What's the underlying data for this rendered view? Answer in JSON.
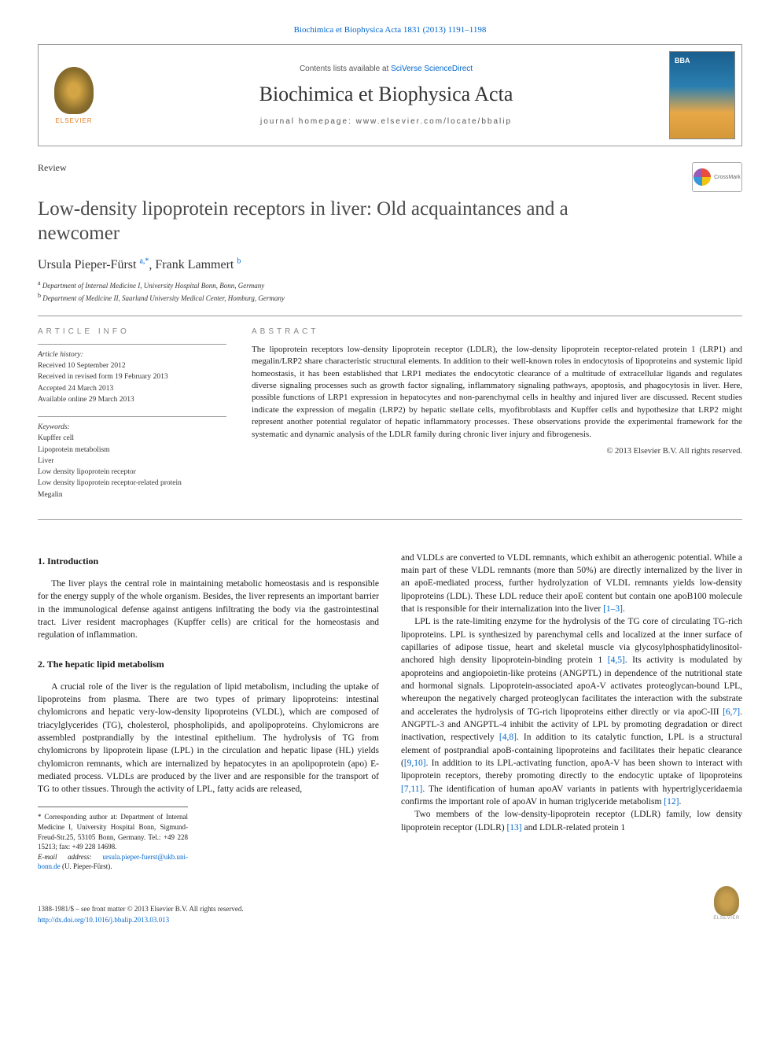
{
  "journal_ref": "Biochimica et Biophysica Acta 1831 (2013) 1191–1198",
  "contents_prefix": "Contents lists available at ",
  "contents_link": "SciVerse ScienceDirect",
  "journal_title": "Biochimica et Biophysica Acta",
  "homepage_prefix": "journal homepage: ",
  "homepage_url": "www.elsevier.com/locate/bbalip",
  "article_type": "Review",
  "crossmark_label": "CrossMark",
  "article_title": "Low-density lipoprotein receptors in liver: Old acquaintances and a newcomer",
  "authors": [
    {
      "name": "Ursula Pieper-Fürst",
      "marks": "a,*"
    },
    {
      "name": "Frank Lammert",
      "marks": "b"
    }
  ],
  "affiliations": [
    {
      "mark": "a",
      "text": "Department of Internal Medicine I, University Hospital Bonn, Bonn, Germany"
    },
    {
      "mark": "b",
      "text": "Department of Medicine II, Saarland University Medical Center, Homburg, Germany"
    }
  ],
  "article_info_header": "ARTICLE INFO",
  "abstract_header": "ABSTRACT",
  "history": {
    "label": "Article history:",
    "received": "Received 10 September 2012",
    "revised": "Received in revised form 19 February 2013",
    "accepted": "Accepted 24 March 2013",
    "online": "Available online 29 March 2013"
  },
  "keywords": {
    "label": "Keywords:",
    "items": [
      "Kupffer cell",
      "Lipoprotein metabolism",
      "Liver",
      "Low density lipoprotein receptor",
      "Low density lipoprotein receptor-related protein",
      "Megalin"
    ]
  },
  "abstract_text": "The lipoprotein receptors low-density lipoprotein receptor (LDLR), the low-density lipoprotein receptor-related protein 1 (LRP1) and megalin/LRP2 share characteristic structural elements. In addition to their well-known roles in endocytosis of lipoproteins and systemic lipid homeostasis, it has been established that LRP1 mediates the endocytotic clearance of a multitude of extracellular ligands and regulates diverse signaling processes such as growth factor signaling, inflammatory signaling pathways, apoptosis, and phagocytosis in liver. Here, possible functions of LRP1 expression in hepatocytes and non-parenchymal cells in healthy and injured liver are discussed. Recent studies indicate the expression of megalin (LRP2) by hepatic stellate cells, myofibroblasts and Kupffer cells and hypothesize that LRP2 might represent another potential regulator of hepatic inflammatory processes. These observations provide the experimental framework for the systematic and dynamic analysis of the LDLR family during chronic liver injury and fibrogenesis.",
  "abstract_copyright": "© 2013 Elsevier B.V. All rights reserved.",
  "sections": {
    "intro": {
      "heading": "1.  Introduction",
      "p1": "The liver plays the central role in maintaining metabolic homeostasis and is responsible for the energy supply of the whole organism. Besides, the liver represents an important barrier in the immunological defense against antigens infiltrating the body via the gastrointestinal tract. Liver resident macrophages (Kupffer cells) are critical for the homeostasis and regulation of inflammation."
    },
    "lipid": {
      "heading": "2.  The hepatic lipid metabolism",
      "p1": "A crucial role of the liver is the regulation of lipid metabolism, including the uptake of lipoproteins from plasma. There are two types of primary lipoproteins: intestinal chylomicrons and hepatic very-low-density lipoproteins (VLDL), which are composed of triacylglycerides (TG), cholesterol, phospholipids, and apolipoproteins. Chylomicrons are assembled postprandially by the intestinal epithelium. The hydrolysis of TG from chylomicrons by lipoprotein lipase (LPL) in the circulation and hepatic lipase (HL) yields chylomicron remnants, which are internalized by hepatocytes in an apolipoprotein (apo) E-mediated process. VLDLs are produced by the liver and are responsible for the transport of TG to other tissues. Through the activity of LPL, fatty acids are released,",
      "p2a": "and VLDLs are converted to VLDL remnants, which exhibit an atherogenic potential. While a main part of these VLDL remnants (more than 50%) are directly internalized by the liver in an apoE-mediated process, further hydrolyzation of VLDL remnants yields low-density lipoproteins (LDL). These LDL reduce their apoE content but contain one apoB100 molecule that is responsible for their internalization into the liver ",
      "p2ref1": "[1–3]",
      "p2b": ".",
      "p3a": "LPL is the rate-limiting enzyme for the hydrolysis of the TG core of circulating TG-rich lipoproteins. LPL is synthesized by parenchymal cells and localized at the inner surface of capillaries of adipose tissue, heart and skeletal muscle via glycosylphosphatidylinositol-anchored high density lipoprotein-binding protein 1 ",
      "p3ref1": "[4,5]",
      "p3b": ". Its activity is modulated by apoproteins and angiopoietin-like proteins (ANGPTL) in dependence of the nutritional state and hormonal signals. Lipoprotein-associated apoA-V activates proteoglycan-bound LPL, whereupon the negatively charged proteoglycan facilitates the interaction with the substrate and accelerates the hydrolysis of TG-rich lipoproteins either directly or via apoC-III ",
      "p3ref2": "[6,7]",
      "p3c": ". ANGPTL-3 and ANGPTL-4 inhibit the activity of LPL by promoting degradation or direct inactivation, respectively ",
      "p3ref3": "[4,8]",
      "p3d": ". In addition to its catalytic function, LPL is a structural element of postprandial apoB-containing lipoproteins and facilitates their hepatic clearance (",
      "p3ref4": "[9,10]",
      "p3e": ". In addition to its LPL-activating function, apoA-V has been shown to interact with lipoprotein receptors, thereby promoting directly to the endocytic uptake of lipoproteins ",
      "p3ref5": "[7,11]",
      "p3f": ". The identification of human apoAV variants in patients with hypertriglyceridaemia confirms the important role of apoAV in human triglyceride metabolism ",
      "p3ref6": "[12]",
      "p3g": ".",
      "p4a": "Two members of the low-density-lipoprotein receptor (LDLR) family, low density lipoprotein receptor (LDLR) ",
      "p4ref1": "[13]",
      "p4b": " and LDLR-related protein 1"
    }
  },
  "footnote": {
    "corr": "* Corresponding author at: Department of Internal Medicine I, University Hospital Bonn, Sigmund-Freud-Str.25, 53105 Bonn, Germany. Tel.: +49 228 15213; fax: +49 228 14698.",
    "email_label": "E-mail address: ",
    "email": "ursula.pieper-fuerst@ukb.uni-bonn.de",
    "email_suffix": " (U. Pieper-Fürst)."
  },
  "footer": {
    "issn": "1388-1981/$ – see front matter © 2013 Elsevier B.V. All rights reserved.",
    "doi": "http://dx.doi.org/10.1016/j.bbalip.2013.03.013",
    "publisher": "ELSEVIER"
  }
}
